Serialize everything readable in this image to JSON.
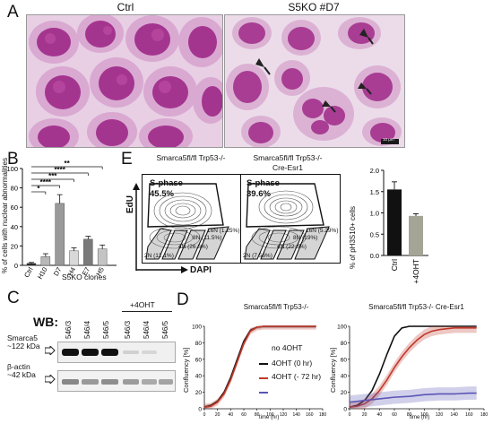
{
  "panelA": {
    "label": "A",
    "left_title": "Ctrl",
    "right_title": "S5KO #D7",
    "scale_bar": "10 µm"
  },
  "panelB": {
    "label": "B",
    "ylabel": "% of cells with nuclear abnormalities",
    "group_label": "S5KO clones",
    "significance": [
      "**",
      "****",
      "***",
      "****",
      "*"
    ]
  },
  "panelC": {
    "label": "C",
    "wb_title": "WB:",
    "treatment_label": "+4OHT",
    "lane_labels": [
      "546/3",
      "546/4",
      "546/5",
      "546/3",
      "546/4",
      "546/5"
    ],
    "band1_name": "Smarca5",
    "band1_size": "~122 kDa",
    "band2_name": "β-actin",
    "band2_size": "~42 kDa"
  },
  "panelD": {
    "label": "D",
    "ylabel": "Confluency [%]",
    "xlabel": "time (hr)",
    "left_title": "Smarca5fl/fl Trp53-/-",
    "right_title": "Smarca5fl/fl Trp53-/- Cre-Esr1",
    "legend": [
      "no 4OHT",
      "4OHT (0 hr)",
      "4OHT (- 72 hr)"
    ]
  },
  "panelE": {
    "label": "E",
    "left_title": "Smarca5fl/fl Trp53-/-",
    "right_title_l1": "Smarca5fl/fl Trp53-/-",
    "right_title_l2": "Cre-Esr1",
    "yaxis": "EdU",
    "xaxis": "DAPI",
    "left_sphase": "S-phase",
    "left_sphase_pct": "45.5%",
    "right_sphase": "S-phase",
    "right_sphase_pct": "39.6%",
    "left_gates": [
      "16N (1.25%)",
      "8N (11.5%)",
      "4N (26.6%)",
      "2N (12.1%)"
    ],
    "right_gates": [
      "16N (5.29%)",
      "8N (19%)",
      "4N (22.6%)",
      "2N (7.56%)"
    ],
    "bar_ylabel": "% of pH3S10+ cells",
    "bar_categories": [
      "Ctrl",
      "+4OHT"
    ]
  },
  "chart_data": [
    {
      "type": "bar",
      "panel": "B",
      "ylabel": "% of cells with nuclear abnormalities",
      "categories": [
        "Ctrl",
        "H10",
        "D7",
        "H4",
        "E7",
        "H5"
      ],
      "values": [
        2,
        9,
        64,
        15,
        27,
        17
      ],
      "errors": [
        1,
        3,
        9,
        3,
        3,
        4
      ],
      "ylim": [
        0,
        100
      ],
      "yticks": [
        0,
        20,
        40,
        60,
        80,
        100
      ],
      "colors": [
        "#222222",
        "#b8b8b8",
        "#9a9a9a",
        "#d8d8d8",
        "#7a7a7a",
        "#c4c4c4"
      ]
    },
    {
      "type": "bar",
      "panel": "E",
      "ylabel": "% of pH3S10+ cells",
      "categories": [
        "Ctrl",
        "+4OHT"
      ],
      "values": [
        1.55,
        0.93
      ],
      "errors": [
        0.18,
        0.05
      ],
      "ylim": [
        0,
        2.0
      ],
      "yticks": [
        0.0,
        0.5,
        1.0,
        1.5,
        2.0
      ],
      "colors": [
        "#111111",
        "#a5a596"
      ]
    },
    {
      "type": "line",
      "panel": "D-left",
      "title": "Smarca5fl/fl Trp53-/-",
      "xlabel": "time (hr)",
      "ylabel": "Confluency [%]",
      "xlim": [
        0,
        180
      ],
      "ylim": [
        0,
        100
      ],
      "xticks": [
        0,
        20,
        40,
        60,
        80,
        100,
        120,
        140,
        160,
        180
      ],
      "yticks": [
        0,
        20,
        40,
        60,
        80,
        100
      ],
      "series": [
        {
          "name": "no 4OHT",
          "color": "#111111",
          "x": [
            0,
            10,
            20,
            30,
            40,
            50,
            60,
            70,
            80,
            90,
            100,
            120,
            140,
            160,
            170
          ],
          "y": [
            2,
            4,
            9,
            20,
            38,
            60,
            82,
            95,
            99,
            100,
            100,
            100,
            100,
            100,
            100
          ]
        },
        {
          "name": "4OHT (0 hr)",
          "color": "#c0392b",
          "x": [
            0,
            10,
            20,
            30,
            40,
            50,
            60,
            70,
            80,
            90,
            100,
            120,
            140,
            160,
            170
          ],
          "y": [
            2,
            3,
            8,
            18,
            35,
            57,
            79,
            94,
            99,
            100,
            100,
            100,
            100,
            100,
            100
          ]
        }
      ]
    },
    {
      "type": "line",
      "panel": "D-right",
      "title": "Smarca5fl/fl Trp53-/- Cre-Esr1",
      "xlabel": "time (hr)",
      "ylabel": "Confluency [%]",
      "xlim": [
        0,
        180
      ],
      "ylim": [
        0,
        100
      ],
      "xticks": [
        0,
        20,
        40,
        60,
        80,
        100,
        120,
        140,
        160,
        180
      ],
      "yticks": [
        0,
        20,
        40,
        60,
        80,
        100
      ],
      "series": [
        {
          "name": "no 4OHT",
          "color": "#111111",
          "x": [
            0,
            10,
            20,
            30,
            40,
            50,
            60,
            70,
            80,
            90,
            100,
            120,
            140,
            160,
            170
          ],
          "y": [
            2,
            4,
            10,
            22,
            42,
            66,
            88,
            98,
            100,
            100,
            100,
            100,
            100,
            100,
            100
          ]
        },
        {
          "name": "4OHT (0 hr)",
          "color": "#c0392b",
          "x": [
            0,
            10,
            20,
            30,
            40,
            50,
            60,
            70,
            80,
            90,
            100,
            110,
            120,
            140,
            160,
            170
          ],
          "y": [
            2,
            3,
            6,
            12,
            22,
            35,
            50,
            63,
            74,
            83,
            90,
            94,
            96,
            98,
            98,
            98
          ]
        },
        {
          "name": "4OHT (- 72 hr)",
          "color": "#5b55b5",
          "x": [
            0,
            20,
            40,
            60,
            80,
            100,
            120,
            140,
            160,
            170
          ],
          "y": [
            8,
            10,
            12,
            14,
            15,
            17,
            18,
            18,
            19,
            19
          ]
        }
      ]
    }
  ]
}
